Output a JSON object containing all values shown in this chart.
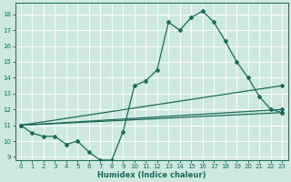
{
  "xlabel": "Humidex (Indice chaleur)",
  "xlim": [
    -0.5,
    23.5
  ],
  "ylim": [
    8.8,
    18.7
  ],
  "yticks": [
    9,
    10,
    11,
    12,
    13,
    14,
    15,
    16,
    17,
    18
  ],
  "xticks": [
    0,
    1,
    2,
    3,
    4,
    5,
    6,
    7,
    8,
    9,
    10,
    11,
    12,
    13,
    14,
    15,
    16,
    17,
    18,
    19,
    20,
    21,
    22,
    23
  ],
  "bg_color": "#cde8df",
  "grid_color": "#ffffff",
  "line_color": "#1a6b5a",
  "series": {
    "line1_x": [
      0,
      1,
      2,
      3,
      4,
      5,
      6,
      7,
      8,
      9,
      10,
      11,
      12,
      13,
      14,
      15,
      16,
      17,
      18,
      19,
      20,
      21,
      22,
      23
    ],
    "line1_y": [
      11.0,
      10.5,
      10.3,
      10.3,
      9.8,
      10.0,
      9.3,
      8.8,
      8.8,
      10.6,
      13.5,
      13.8,
      14.5,
      17.5,
      17.0,
      17.8,
      18.2,
      17.5,
      16.3,
      15.0,
      14.0,
      12.8,
      12.0,
      11.8
    ],
    "line2_x": [
      0,
      23
    ],
    "line2_y": [
      11.0,
      13.5
    ],
    "line3_x": [
      0,
      23
    ],
    "line3_y": [
      11.0,
      12.0
    ],
    "line4_x": [
      0,
      23
    ],
    "line4_y": [
      11.0,
      11.8
    ]
  },
  "tick_fontsize": 5.0,
  "xlabel_fontsize": 6.0
}
